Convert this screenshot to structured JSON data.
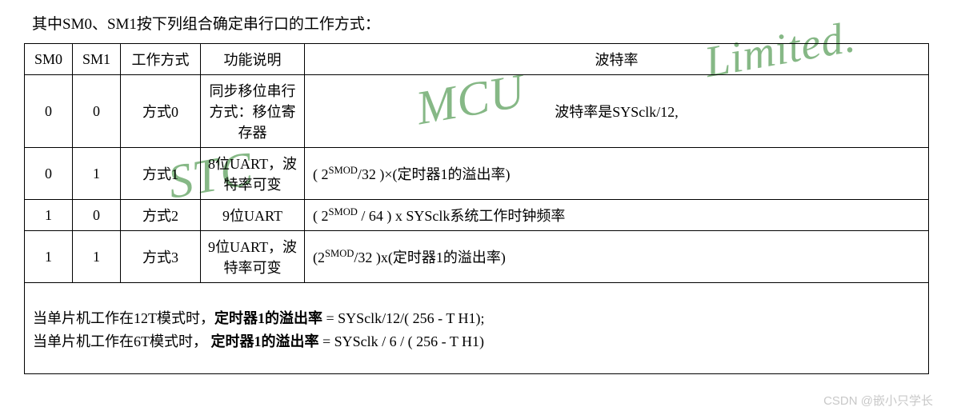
{
  "intro": "其中SM0、SM1按下列组合确定串行口的工作方式：",
  "headers": {
    "sm0": "SM0",
    "sm1": "SM1",
    "mode": "工作方式",
    "desc": "功能说明",
    "baud": "波特率"
  },
  "rows": [
    {
      "sm0": "0",
      "sm1": "0",
      "mode": "方式0",
      "desc": "同步移位串行方式：移位寄存器",
      "baud_html": "波特率是SYSclk/12,",
      "baud_align": "c"
    },
    {
      "sm0": "0",
      "sm1": "1",
      "mode": "方式1",
      "desc": "8位UART，波特率可变",
      "baud_html": "( 2<sup>SMOD</sup>/32 )×(定时器1的溢出率)",
      "baud_align": "l"
    },
    {
      "sm0": "1",
      "sm1": "0",
      "mode": "方式2",
      "desc": "9位UART",
      "baud_html": "( 2<sup>SMOD</sup> / 64 ) x SYSclk系统工作时钟频率",
      "baud_align": "l"
    },
    {
      "sm0": "1",
      "sm1": "1",
      "mode": "方式3",
      "desc": "9位UART，波特率可变",
      "baud_html": "(2<sup>SMOD</sup>/32 )x(定时器1的溢出率)",
      "baud_align": "l"
    }
  ],
  "footer": {
    "line1_a": "当单片机工作在12T模式时，",
    "line1_b": "定时器1的溢出率",
    "line1_c": " = SYSclk/12/( 256 - T H1);",
    "line2_a": "当单片机工作在6T模式时，  ",
    "line2_b": "定时器1的溢出率",
    "line2_c": " = SYSclk / 6 / ( 256 - T H1)"
  },
  "watermark": {
    "w1": "STC",
    "w2": "MCU",
    "w3": "Limited."
  },
  "csdn": "CSDN @嵌小只学长"
}
